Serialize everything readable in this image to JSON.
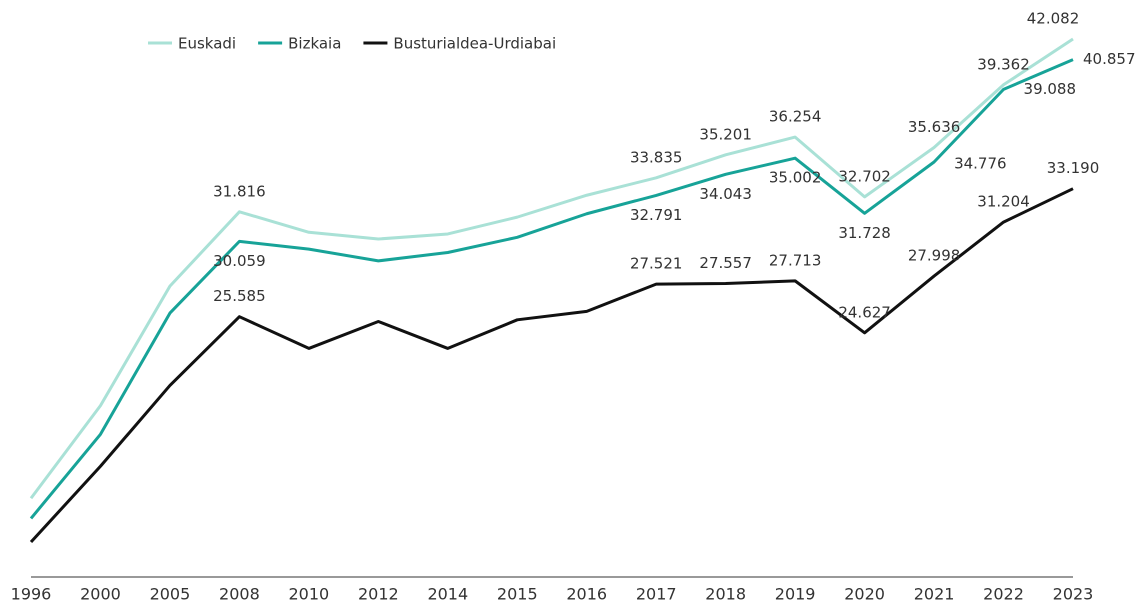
{
  "chart_data": {
    "type": "line",
    "categories": [
      "1996",
      "2000",
      "2005",
      "2008",
      "2010",
      "2012",
      "2014",
      "2015",
      "2016",
      "2017",
      "2018",
      "2019",
      "2020",
      "2021",
      "2022",
      "2023"
    ],
    "series": [
      {
        "name": "Euskadi",
        "color": "#a9e1d6",
        "values": [
          14800,
          20300,
          27400,
          31816,
          30600,
          30200,
          30500,
          31500,
          32800,
          33835,
          35201,
          36254,
          32702,
          35636,
          39362,
          42082
        ],
        "value_labels": [
          null,
          null,
          null,
          "31.816",
          null,
          null,
          null,
          null,
          null,
          "33.835",
          "35.201",
          "36.254",
          "32.702",
          "35.636",
          "39.362",
          "42.082"
        ]
      },
      {
        "name": "Bizkaia",
        "color": "#17a398",
        "values": [
          13600,
          18600,
          25800,
          30059,
          29600,
          28900,
          29400,
          30300,
          31700,
          32791,
          34043,
          35002,
          31728,
          34776,
          39088,
          40857
        ],
        "value_labels": [
          null,
          null,
          null,
          "30.059",
          null,
          null,
          null,
          null,
          null,
          "32.791",
          "34.043",
          "35.002",
          "31.728",
          "34.776",
          "39.088",
          "40.857"
        ]
      },
      {
        "name": "Busturialdea-Urdiabai",
        "color": "#111111",
        "values": [
          12200,
          16700,
          21500,
          25585,
          23700,
          25300,
          23700,
          25400,
          25900,
          27521,
          27557,
          27713,
          24627,
          27998,
          31204,
          33190
        ],
        "value_labels": [
          null,
          null,
          null,
          "25.585",
          null,
          null,
          null,
          null,
          null,
          "27.521",
          "27.557",
          "27.713",
          "24.627",
          "27.998",
          "31.204",
          "33.190"
        ]
      }
    ]
  }
}
